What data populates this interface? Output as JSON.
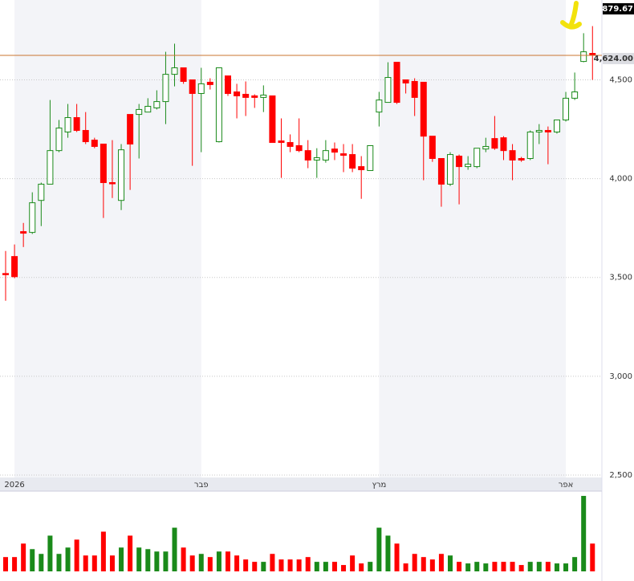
{
  "chart_data": [
    {
      "type": "candlestick",
      "categories": [
        null,
        "2026",
        null,
        null,
        null,
        null,
        null,
        null,
        null,
        null,
        null,
        null,
        null,
        null,
        null,
        null,
        null,
        null,
        null,
        null,
        null,
        null,
        "פבר",
        null,
        null,
        null,
        null,
        null,
        null,
        null,
        null,
        null,
        null,
        null,
        null,
        null,
        null,
        null,
        null,
        null,
        null,
        null,
        "מרץ",
        null,
        null,
        null,
        null,
        null,
        null,
        null,
        null,
        null,
        null,
        null,
        null,
        null,
        null,
        null,
        null,
        null,
        null,
        null,
        null,
        "אפר",
        null,
        null,
        null
      ],
      "open": [
        3520,
        3606,
        3732,
        3728,
        3890,
        3972,
        4142,
        4236,
        4309,
        4244,
        4195,
        4175,
        3980,
        3890,
        4325,
        4325,
        4337,
        4358,
        4390,
        4528,
        4561,
        4500,
        4431,
        4488,
        4187,
        4520,
        4439,
        4427,
        4419,
        4411,
        4419,
        4191,
        4183,
        4167,
        4142,
        4094,
        4094,
        4150,
        4126,
        4122,
        4061,
        4041,
        4337,
        4386,
        4589,
        4500,
        4492,
        4488,
        4215,
        4102,
        3972,
        4114,
        4061,
        4061,
        4150,
        4203,
        4207,
        4142,
        4102,
        4102,
        4236,
        4244,
        4236,
        4297,
        4407,
        4593,
        4634
      ],
      "high": [
        3634,
        3667,
        3776,
        3931,
        3980,
        4398,
        4297,
        4378,
        4378,
        4337,
        4207,
        4175,
        4195,
        4175,
        4325,
        4378,
        4407,
        4447,
        4642,
        4683,
        4561,
        4500,
        4561,
        4508,
        4561,
        4520,
        4480,
        4492,
        4427,
        4472,
        4419,
        4305,
        4224,
        4305,
        4195,
        4154,
        4195,
        4183,
        4175,
        4175,
        4114,
        4167,
        4439,
        4589,
        4589,
        4500,
        4508,
        4488,
        4215,
        4102,
        4134,
        4122,
        4114,
        4154,
        4207,
        4317,
        4215,
        4175,
        4110,
        4244,
        4276,
        4264,
        4297,
        4439,
        4537,
        4736,
        4772
      ],
      "low": [
        3382,
        3496,
        3654,
        3720,
        3760,
        3972,
        4134,
        4207,
        4236,
        4175,
        4154,
        3801,
        3902,
        3841,
        3943,
        4102,
        4337,
        4350,
        4276,
        4467,
        4480,
        4065,
        4134,
        4451,
        4183,
        4419,
        4305,
        4317,
        4358,
        4337,
        4183,
        4004,
        4134,
        4134,
        4053,
        4004,
        4081,
        4094,
        4033,
        4033,
        3898,
        4041,
        4264,
        4386,
        4378,
        4431,
        4317,
        3992,
        4085,
        3858,
        3963,
        3870,
        4045,
        4053,
        4134,
        4146,
        4094,
        3992,
        4085,
        4094,
        4175,
        4073,
        4228,
        4289,
        4398,
        4589,
        4500
      ],
      "close": [
        3516,
        3504,
        3724,
        3878,
        3972,
        4142,
        4256,
        4309,
        4244,
        4187,
        4163,
        3980,
        3976,
        4146,
        4175,
        4350,
        4366,
        4390,
        4528,
        4561,
        4492,
        4431,
        4480,
        4476,
        4561,
        4431,
        4419,
        4411,
        4411,
        4423,
        4183,
        4183,
        4163,
        4142,
        4094,
        4106,
        4142,
        4134,
        4118,
        4053,
        4045,
        4167,
        4398,
        4512,
        4386,
        4484,
        4411,
        4215,
        4102,
        3972,
        4122,
        4061,
        4073,
        4154,
        4163,
        4154,
        4142,
        4094,
        4094,
        4236,
        4244,
        4236,
        4297,
        4407,
        4439,
        4642,
        4624
      ],
      "up_color": "#1a8a1a",
      "down_color": "#ff0000",
      "ylim": [
        2500,
        4879.67
      ],
      "yticks": [
        {
          "value": 2500,
          "label": "2,500"
        },
        {
          "value": 3000,
          "label": "3,000"
        },
        {
          "value": 3500,
          "label": "3,500"
        },
        {
          "value": 4000,
          "label": "4,000"
        },
        {
          "value": 4500,
          "label": "4,500"
        }
      ],
      "grid": true,
      "last_price": {
        "value": 4624,
        "label": "4,624.00"
      },
      "last_price_color": "#c8752f"
    },
    {
      "type": "volume",
      "values": [
        18,
        18,
        35,
        28,
        22,
        45,
        22,
        30,
        40,
        20,
        20,
        50,
        20,
        30,
        45,
        30,
        28,
        25,
        25,
        55,
        30,
        20,
        22,
        18,
        25,
        25,
        20,
        15,
        12,
        12,
        22,
        15,
        15,
        15,
        18,
        12,
        12,
        12,
        8,
        20,
        10,
        12,
        55,
        45,
        35,
        10,
        22,
        18,
        15,
        22,
        20,
        12,
        10,
        12,
        10,
        12,
        12,
        12,
        8,
        12,
        12,
        12,
        10,
        10,
        18,
        95,
        35
      ],
      "up_color": "#1a8a1a",
      "down_color": "#ff0000",
      "ylim": [
        0,
        100
      ]
    }
  ]
}
